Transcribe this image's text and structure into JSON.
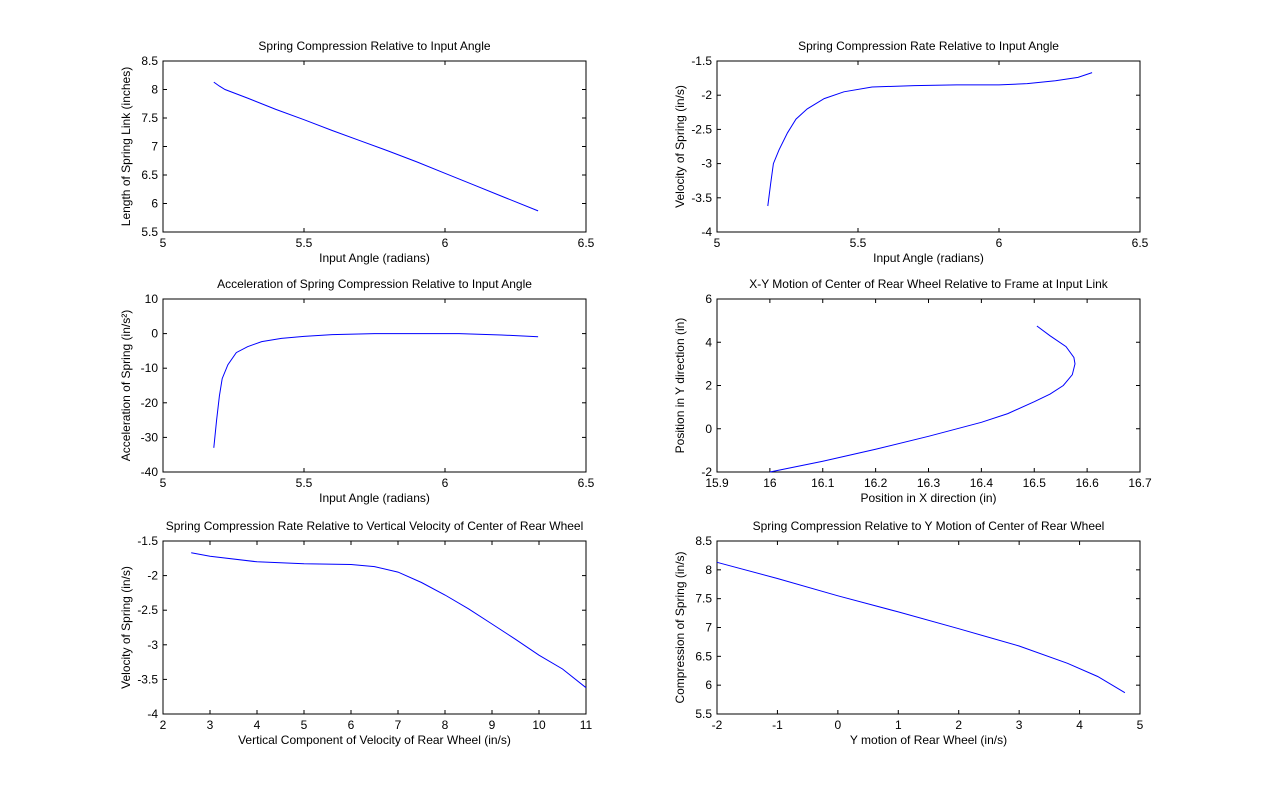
{
  "chart_data": [
    {
      "type": "line",
      "title": "Spring Compression Relative to Input Angle",
      "xlabel": "Input Angle (radians)",
      "ylabel": "Length of Spring Link (inches)",
      "xlim": [
        5,
        6.5
      ],
      "ylim": [
        5.5,
        8.5
      ],
      "xticks": [
        5,
        5.5,
        6,
        6.5
      ],
      "yticks": [
        5.5,
        6,
        6.5,
        7,
        7.5,
        8,
        8.5
      ],
      "xticklabels": [
        "5",
        "5.5",
        "6",
        "6.5"
      ],
      "yticklabels": [
        "5.5",
        "6",
        "6.5",
        "7",
        "7.5",
        "8",
        "8.5"
      ],
      "grid": false,
      "color": "#0000ff",
      "x": [
        5.18,
        5.2,
        5.22,
        5.3,
        5.4,
        5.5,
        5.6,
        5.7,
        5.8,
        5.9,
        6.0,
        6.1,
        6.2,
        6.33
      ],
      "y": [
        8.13,
        8.06,
        8.0,
        7.85,
        7.65,
        7.47,
        7.28,
        7.1,
        6.92,
        6.73,
        6.53,
        6.33,
        6.13,
        5.87
      ]
    },
    {
      "type": "line",
      "title": "Spring Compression Rate Relative to Input Angle",
      "xlabel": "Input Angle (radians)",
      "ylabel": "Velocity of Spring (in/s)",
      "xlim": [
        5,
        6.5
      ],
      "ylim": [
        -4,
        -1.5
      ],
      "xticks": [
        5,
        5.5,
        6,
        6.5
      ],
      "yticks": [
        -4,
        -3.5,
        -3,
        -2.5,
        -2,
        -1.5
      ],
      "xticklabels": [
        "5",
        "5.5",
        "6",
        "6.5"
      ],
      "yticklabels": [
        "-4",
        "-3.5",
        "-3",
        "-2.5",
        "-2",
        "-1.5"
      ],
      "grid": false,
      "color": "#0000ff",
      "x": [
        5.18,
        5.19,
        5.2,
        5.22,
        5.25,
        5.28,
        5.32,
        5.38,
        5.45,
        5.55,
        5.7,
        5.85,
        6.0,
        6.1,
        6.2,
        6.28,
        6.33
      ],
      "y": [
        -3.62,
        -3.3,
        -3.0,
        -2.8,
        -2.55,
        -2.35,
        -2.2,
        -2.05,
        -1.95,
        -1.88,
        -1.86,
        -1.85,
        -1.85,
        -1.83,
        -1.79,
        -1.74,
        -1.67
      ]
    },
    {
      "type": "line",
      "title": "Acceleration of Spring Compression Relative to Input Angle",
      "xlabel": "Input Angle (radians)",
      "ylabel": "Acceleration of Spring (in/s²)",
      "xlim": [
        5,
        6.5
      ],
      "ylim": [
        -40,
        10
      ],
      "xticks": [
        5,
        5.5,
        6,
        6.5
      ],
      "yticks": [
        -40,
        -30,
        -20,
        -10,
        0,
        10
      ],
      "xticklabels": [
        "5",
        "5.5",
        "6",
        "6.5"
      ],
      "yticklabels": [
        "-40",
        "-30",
        "-20",
        "-10",
        "0",
        "10"
      ],
      "grid": false,
      "color": "#0000ff",
      "x": [
        5.18,
        5.19,
        5.2,
        5.21,
        5.23,
        5.26,
        5.3,
        5.35,
        5.42,
        5.5,
        5.6,
        5.75,
        5.9,
        6.05,
        6.2,
        6.33
      ],
      "y": [
        -33,
        -25,
        -18,
        -13,
        -9,
        -5.5,
        -3.8,
        -2.3,
        -1.4,
        -0.8,
        -0.3,
        0,
        0,
        0,
        -0.4,
        -0.9
      ]
    },
    {
      "type": "line",
      "title": "X-Y Motion of Center of Rear Wheel Relative to Frame at Input Link",
      "xlabel": "Position in X direction (in)",
      "ylabel": "Position in Y direction (in)",
      "xlim": [
        15.9,
        16.7
      ],
      "ylim": [
        -2,
        6
      ],
      "xticks": [
        15.9,
        16,
        16.1,
        16.2,
        16.3,
        16.4,
        16.5,
        16.6,
        16.7
      ],
      "yticks": [
        -2,
        0,
        2,
        4,
        6
      ],
      "xticklabels": [
        "15.9",
        "16",
        "16.1",
        "16.2",
        "16.3",
        "16.4",
        "16.5",
        "16.6",
        "16.7"
      ],
      "yticklabels": [
        "-2",
        "0",
        "2",
        "4",
        "6"
      ],
      "grid": false,
      "color": "#0000ff",
      "x": [
        16.0,
        16.1,
        16.2,
        16.3,
        16.4,
        16.45,
        16.5,
        16.53,
        16.555,
        16.572,
        16.577,
        16.575,
        16.56,
        16.53,
        16.505
      ],
      "y": [
        -2.0,
        -1.5,
        -0.95,
        -0.35,
        0.3,
        0.7,
        1.25,
        1.6,
        2.0,
        2.5,
        3.0,
        3.3,
        3.8,
        4.3,
        4.75
      ]
    },
    {
      "type": "line",
      "title": "Spring Compression Rate Relative to Vertical Velocity of Center of Rear Wheel",
      "xlabel": "Vertical Component of Velocity of Rear Wheel (in/s)",
      "ylabel": "Velocity of Spring (in/s)",
      "xlim": [
        2,
        11
      ],
      "ylim": [
        -4,
        -1.5
      ],
      "xticks": [
        2,
        3,
        4,
        5,
        6,
        7,
        8,
        9,
        10,
        11
      ],
      "yticks": [
        -4,
        -3.5,
        -3,
        -2.5,
        -2,
        -1.5
      ],
      "xticklabels": [
        "2",
        "3",
        "4",
        "5",
        "6",
        "7",
        "8",
        "9",
        "10",
        "11"
      ],
      "yticklabels": [
        "-4",
        "-3.5",
        "-3",
        "-2.5",
        "-2",
        "-1.5"
      ],
      "grid": false,
      "color": "#0000ff",
      "x": [
        2.6,
        3,
        4,
        5,
        6,
        6.5,
        7,
        7.5,
        8,
        8.5,
        9,
        9.5,
        10,
        10.5,
        11
      ],
      "y": [
        -1.67,
        -1.72,
        -1.8,
        -1.83,
        -1.84,
        -1.87,
        -1.95,
        -2.1,
        -2.28,
        -2.48,
        -2.7,
        -2.92,
        -3.15,
        -3.35,
        -3.62
      ]
    },
    {
      "type": "line",
      "title": "Spring Compression Relative to Y Motion of Center of Rear Wheel",
      "xlabel": "Y motion of Rear Wheel (in/s)",
      "ylabel": "Compression of Spring (in/s)",
      "xlim": [
        -2,
        5
      ],
      "ylim": [
        5.5,
        8.5
      ],
      "xticks": [
        -2,
        -1,
        0,
        1,
        2,
        3,
        4,
        5
      ],
      "yticks": [
        5.5,
        6,
        6.5,
        7,
        7.5,
        8,
        8.5
      ],
      "xticklabels": [
        "-2",
        "-1",
        "0",
        "1",
        "2",
        "3",
        "4",
        "5"
      ],
      "yticklabels": [
        "5.5",
        "6",
        "6.5",
        "7",
        "7.5",
        "8",
        "8.5"
      ],
      "grid": false,
      "color": "#0000ff",
      "x": [
        -2,
        -1,
        0,
        1,
        2,
        3,
        3.8,
        4.3,
        4.75
      ],
      "y": [
        8.13,
        7.85,
        7.55,
        7.27,
        6.98,
        6.68,
        6.38,
        6.15,
        5.87
      ]
    }
  ]
}
